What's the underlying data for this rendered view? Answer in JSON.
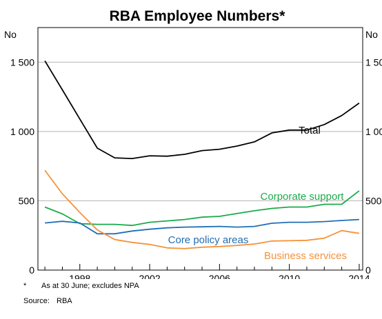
{
  "chart_data": {
    "type": "line",
    "title": "RBA Employee Numbers*",
    "ylabel_left": "No",
    "ylabel_right": "No",
    "xlim": [
      1995.6,
      2014.2
    ],
    "ylim": [
      0,
      1750
    ],
    "x_ticks": [
      1998,
      2002,
      2006,
      2010,
      2014
    ],
    "y_ticks": [
      0,
      500,
      1000,
      1500
    ],
    "y_tick_labels": [
      "0",
      "500",
      "1 000",
      "1 500"
    ],
    "y_tick_labels_right": [
      "0",
      "500",
      "1 000",
      "1 500"
    ],
    "grid": "horizontal",
    "x": [
      1996,
      1997,
      1998,
      1999,
      2000,
      2001,
      2002,
      2003,
      2004,
      2005,
      2006,
      2007,
      2008,
      2009,
      2010,
      2011,
      2012,
      2013,
      2014
    ],
    "series": [
      {
        "name": "Total",
        "color": "#000000",
        "values": [
          1510,
          1300,
          1090,
          880,
          810,
          805,
          825,
          822,
          835,
          862,
          872,
          895,
          925,
          990,
          1010,
          1010,
          1050,
          1115,
          1205
        ]
      },
      {
        "name": "Corporate support",
        "color": "#1aaa4a",
        "values": [
          455,
          405,
          335,
          330,
          330,
          322,
          345,
          355,
          365,
          382,
          388,
          408,
          428,
          445,
          455,
          455,
          475,
          475,
          572
        ]
      },
      {
        "name": "Core policy areas",
        "color": "#1f6eb4",
        "values": [
          340,
          352,
          340,
          262,
          262,
          282,
          295,
          305,
          310,
          312,
          315,
          310,
          315,
          338,
          345,
          345,
          350,
          358,
          365
        ]
      },
      {
        "name": "Business services",
        "color": "#f6923a",
        "values": [
          720,
          550,
          415,
          290,
          220,
          200,
          185,
          160,
          155,
          165,
          170,
          178,
          188,
          210,
          212,
          215,
          230,
          285,
          265
        ]
      }
    ]
  },
  "footnotes": {
    "asterisk_mark": "*",
    "asterisk_text": "As at 30 June; excludes NPA",
    "source_label": "Source:",
    "source_text": "RBA"
  }
}
